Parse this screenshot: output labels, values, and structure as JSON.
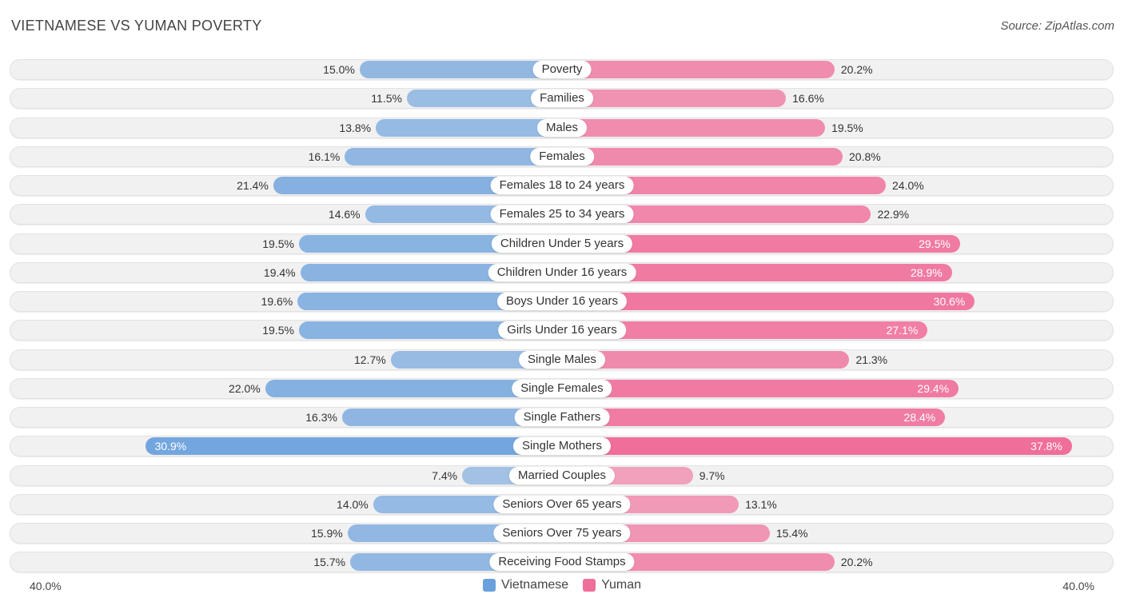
{
  "chart_data": {
    "type": "bar",
    "orientation": "horizontal-diverging",
    "title": "VIETNAMESE VS YUMAN POVERTY",
    "source": "Source: ZipAtlas.com",
    "axis_min_label": "40.0%",
    "axis_max_label": "40.0%",
    "max_value": 40.0,
    "categories": [
      "Poverty",
      "Families",
      "Males",
      "Females",
      "Females 18 to 24 years",
      "Females 25 to 34 years",
      "Children Under 5 years",
      "Children Under 16 years",
      "Boys Under 16 years",
      "Girls Under 16 years",
      "Single Males",
      "Single Females",
      "Single Fathers",
      "Single Mothers",
      "Married Couples",
      "Seniors Over 65 years",
      "Seniors Over 75 years",
      "Receiving Food Stamps"
    ],
    "series": [
      {
        "name": "Vietnamese",
        "color": "#6aa0dc",
        "values": [
          15.0,
          11.5,
          13.8,
          16.1,
          21.4,
          14.6,
          19.5,
          19.4,
          19.6,
          19.5,
          12.7,
          22.0,
          16.3,
          30.9,
          7.4,
          14.0,
          15.9,
          15.7
        ],
        "labels": [
          "15.0%",
          "11.5%",
          "13.8%",
          "16.1%",
          "21.4%",
          "14.6%",
          "19.5%",
          "19.4%",
          "19.6%",
          "19.5%",
          "12.7%",
          "22.0%",
          "16.3%",
          "30.9%",
          "7.4%",
          "14.0%",
          "15.9%",
          "15.7%"
        ]
      },
      {
        "name": "Yuman",
        "color": "#f06f9a",
        "values": [
          20.2,
          16.6,
          19.5,
          20.8,
          24.0,
          22.9,
          29.5,
          28.9,
          30.6,
          27.1,
          21.3,
          29.4,
          28.4,
          37.8,
          9.7,
          13.1,
          15.4,
          20.2
        ],
        "labels": [
          "20.2%",
          "16.6%",
          "19.5%",
          "20.8%",
          "24.0%",
          "22.9%",
          "29.5%",
          "28.9%",
          "30.6%",
          "27.1%",
          "21.3%",
          "29.4%",
          "28.4%",
          "37.8%",
          "9.7%",
          "13.1%",
          "15.4%",
          "20.2%"
        ]
      }
    ],
    "legend": [
      "Vietnamese",
      "Yuman"
    ]
  }
}
